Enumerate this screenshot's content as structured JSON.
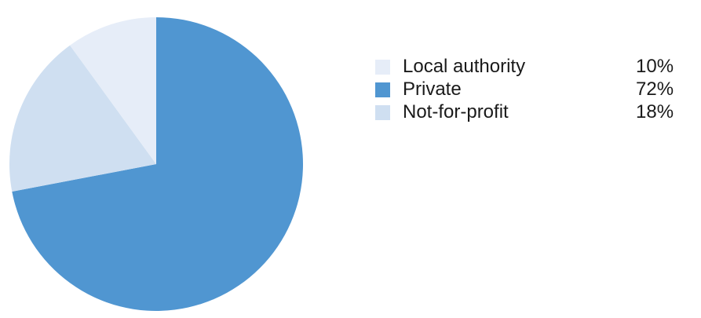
{
  "chart_data": {
    "type": "pie",
    "title": "",
    "slices": [
      {
        "label": "Local authority",
        "value": 10,
        "display": "10%",
        "color": "#e6edf8"
      },
      {
        "label": "Private",
        "value": 72,
        "display": "72%",
        "color": "#5096d1"
      },
      {
        "label": "Not-for-profit",
        "value": 18,
        "display": "18%",
        "color": "#cfdff1"
      }
    ],
    "legend_position": "right",
    "start_angle": "12 o'clock",
    "direction": "clockwise (order: Private, Not-for-profit, Local authority)"
  },
  "legend": {
    "items": [
      {
        "label": "Local authority",
        "value": "10%",
        "color": "#e6edf8"
      },
      {
        "label": "Private",
        "value": "72%",
        "color": "#5096d1"
      },
      {
        "label": "Not-for-profit",
        "value": "18%",
        "color": "#cfdff1"
      }
    ]
  }
}
